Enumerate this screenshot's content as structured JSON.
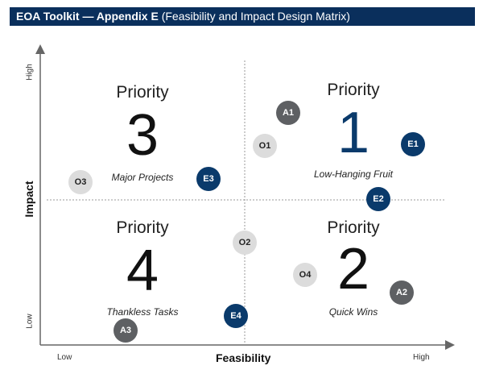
{
  "header": {
    "title_bold": "EOA Toolkit — Appendix E",
    "title_rest": "(Feasibility and Impact Design Matrix)"
  },
  "axes": {
    "x_title": "Feasibility",
    "x_low": "Low",
    "x_high": "High",
    "y_title": "Impact",
    "y_low": "Low",
    "y_high": "High"
  },
  "quadrants": [
    {
      "id": "q3",
      "priority": "Priority",
      "number": "3",
      "caption": "Major Projects"
    },
    {
      "id": "q1",
      "priority": "Priority",
      "number": "1",
      "caption": "Low-Hanging Fruit"
    },
    {
      "id": "q4",
      "priority": "Priority",
      "number": "4",
      "caption": "Thankless Tasks"
    },
    {
      "id": "q2",
      "priority": "Priority",
      "number": "2",
      "caption": "Quick Wins"
    }
  ],
  "items": [
    {
      "label": "A1",
      "group": "A"
    },
    {
      "label": "O1",
      "group": "O"
    },
    {
      "label": "E1",
      "group": "E"
    },
    {
      "label": "O3",
      "group": "O"
    },
    {
      "label": "E3",
      "group": "E"
    },
    {
      "label": "E2",
      "group": "E"
    },
    {
      "label": "O2",
      "group": "O"
    },
    {
      "label": "O4",
      "group": "O"
    },
    {
      "label": "A2",
      "group": "A"
    },
    {
      "label": "E4",
      "group": "E"
    },
    {
      "label": "A3",
      "group": "A"
    }
  ],
  "colors": {
    "header_bg": "#0a2f5c",
    "group_E": "#0a3a6b",
    "group_A": "#5e6063",
    "group_O": "#dcdcdc"
  }
}
